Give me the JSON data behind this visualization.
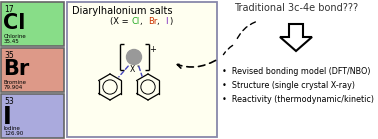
{
  "cl_number": "17",
  "cl_symbol": "Cl",
  "cl_name": "Chlorine",
  "cl_mass": "35.45",
  "cl_color": "#88dd88",
  "br_number": "35",
  "br_symbol": "Br",
  "br_name": "Bromine",
  "br_mass": "79.904",
  "br_color": "#dd9988",
  "i_number": "53",
  "i_symbol": "I",
  "i_name": "Iodine",
  "i_mass": "126.90",
  "i_color": "#aaaadd",
  "middle_bg": "#fffff0",
  "middle_border": "#8888aa",
  "title_middle": "Diarylhalonium salts",
  "subtitle_cl": "Cl",
  "subtitle_br": "Br",
  "subtitle_i": "I",
  "subtitle_cl_color": "#22aa22",
  "subtitle_br_color": "#cc3300",
  "subtitle_i_color": "#7722bb",
  "traditional_text": "Traditional 3c-4e bond???",
  "traditional_color": "#333333",
  "bullet1": "Revised bonding model (DFT/NBO)",
  "bullet2": "Structure (single crystal X-ray)",
  "bullet3": "Reactivity (thermodynamic/kinetic)",
  "bg_color": "#ffffff"
}
